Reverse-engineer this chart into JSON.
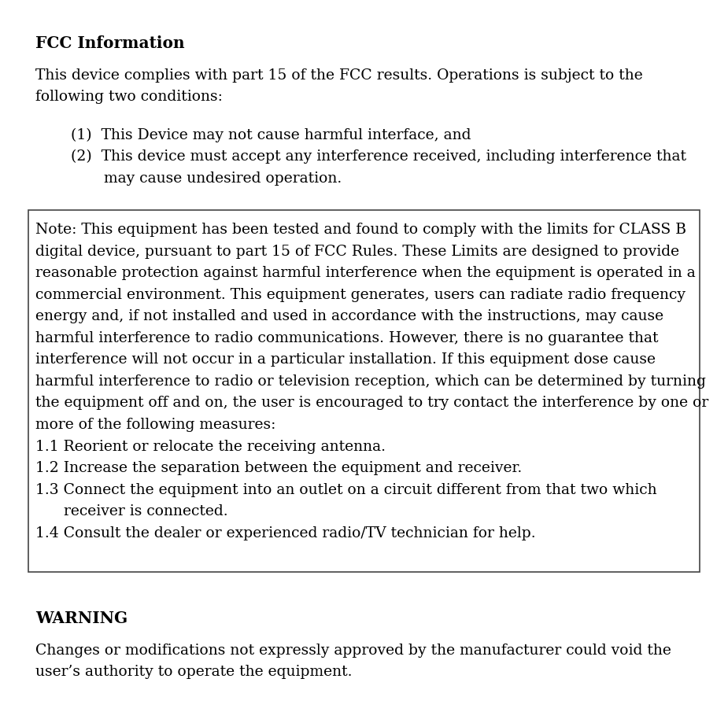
{
  "title": "FCC Information",
  "bg_color": "#ffffff",
  "text_color": "#000000",
  "font_size": 13.5,
  "title_font_size": 14.5,
  "fig_width": 9.25,
  "fig_height": 9.2,
  "para1_lines": [
    "This device complies with part 15 of the FCC results. Operations is subject to the",
    "following two conditions:"
  ],
  "item1": "(1)  This Device may not cause harmful interface, and",
  "item2_line1": "(2)  This device must accept any interference received, including interference that",
  "item2_line2": "       may cause undesired operation.",
  "note_lines": [
    "Note: This equipment has been tested and found to comply with the limits for CLASS B",
    "digital device, pursuant to part 15 of FCC Rules. These Limits are designed to provide",
    "reasonable protection against harmful interference when the equipment is operated in a",
    "commercial environment. This equipment generates, users can radiate radio frequency",
    "energy and, if not installed and used in accordance with the instructions, may cause",
    "harmful interference to radio communications. However, there is no guarantee that",
    "interference will not occur in a particular installation. If this equipment dose cause",
    "harmful interference to radio or television reception, which can be determined by turning",
    "the equipment off and on, the user is encouraged to try contact the interference by one or",
    "more of the following measures:",
    "1.1 Reorient or relocate the receiving antenna.",
    "1.2 Increase the separation between the equipment and receiver.",
    "1.3 Connect the equipment into an outlet on a circuit different from that two which",
    "      receiver is connected.",
    "1.4 Consult the dealer or experienced radio/TV technician for help."
  ],
  "warning_title": "WARNING",
  "warning_lines": [
    "Changes or modifications not expressly approved by the manufacturer could void the",
    "user’s authority to operate the equipment."
  ]
}
